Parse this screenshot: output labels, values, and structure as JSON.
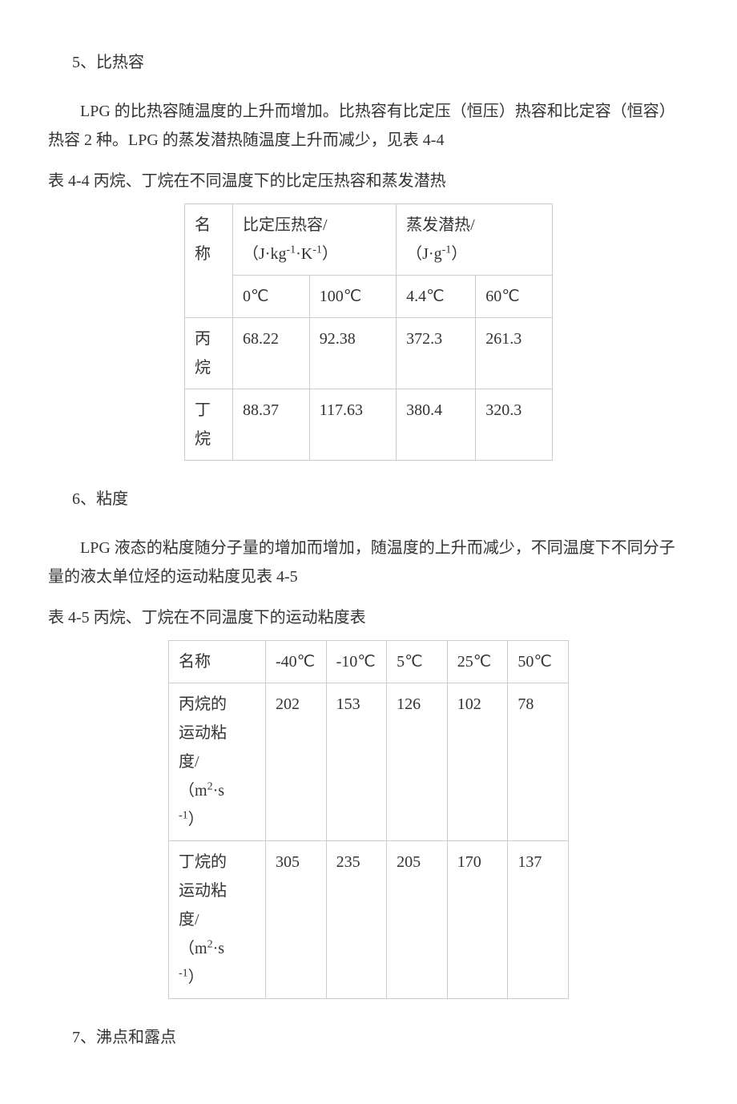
{
  "section5": {
    "heading": "5、比热容",
    "paragraph": "LPG 的比热容随温度的上升而增加。比热容有比定压（恒压）热容和比定容（恒容）热容 2 种。LPG 的蒸发潜热随温度上升而减少，见表 4-4"
  },
  "table1": {
    "caption": "表 4-4  丙烷、丁烷在不同温度下的比定压热容和蒸发潜热",
    "header": {
      "name": "名称",
      "col1_label": "比定压热容/",
      "col1_unit_prefix": "（J·kg",
      "col1_unit_exp1": "-1",
      "col1_unit_mid": "·K",
      "col1_unit_exp2": "-1",
      "col1_unit_suffix": "）",
      "col2_label": "蒸发潜热/",
      "col2_unit_prefix": "（J·g",
      "col2_unit_exp": "-1",
      "col2_unit_suffix": "）"
    },
    "subheader": {
      "t1": "0℃",
      "t2": "100℃",
      "t3": "4.4℃",
      "t4": "60℃"
    },
    "rows": [
      {
        "name": "丙烷",
        "v1": "68.22",
        "v2": "92.38",
        "v3": "372.3",
        "v4": "261.3"
      },
      {
        "name": "丁烷",
        "v1": "88.37",
        "v2": "117.63",
        "v3": "380.4",
        "v4": "320.3"
      }
    ]
  },
  "section6": {
    "heading": "6、粘度",
    "paragraph": "LPG 液态的粘度随分子量的增加而增加，随温度的上升而减少，不同温度下不同分子量的液太单位烃的运动粘度见表 4-5"
  },
  "table2": {
    "caption": "表 4-5  丙烷、丁烷在不同温度下的运动粘度表",
    "header": {
      "name": "名称",
      "t1": "-40℃",
      "t2": "-10℃",
      "t3": "5℃",
      "t4": "25℃",
      "t5": "50℃"
    },
    "row1": {
      "label_l1": "丙烷的",
      "label_l2": "运动粘",
      "label_l3": "度/",
      "label_unit_prefix": "（m",
      "label_unit_exp1": "2",
      "label_unit_mid": "·s",
      "label_unit_exp2": "-1",
      "label_unit_suffix": "）",
      "v1": "202",
      "v2": "153",
      "v3": "126",
      "v4": "102",
      "v5": "78"
    },
    "row2": {
      "label_l1": "丁烷的",
      "label_l2": "运动粘",
      "label_l3": "度/",
      "label_unit_prefix": "（m",
      "label_unit_exp1": "2",
      "label_unit_mid": "·s",
      "label_unit_exp2": "-1",
      "label_unit_suffix": "）",
      "v1": "305",
      "v2": "235",
      "v3": "205",
      "v4": "170",
      "v5": "137"
    }
  },
  "section7": {
    "heading": "7、沸点和露点"
  }
}
